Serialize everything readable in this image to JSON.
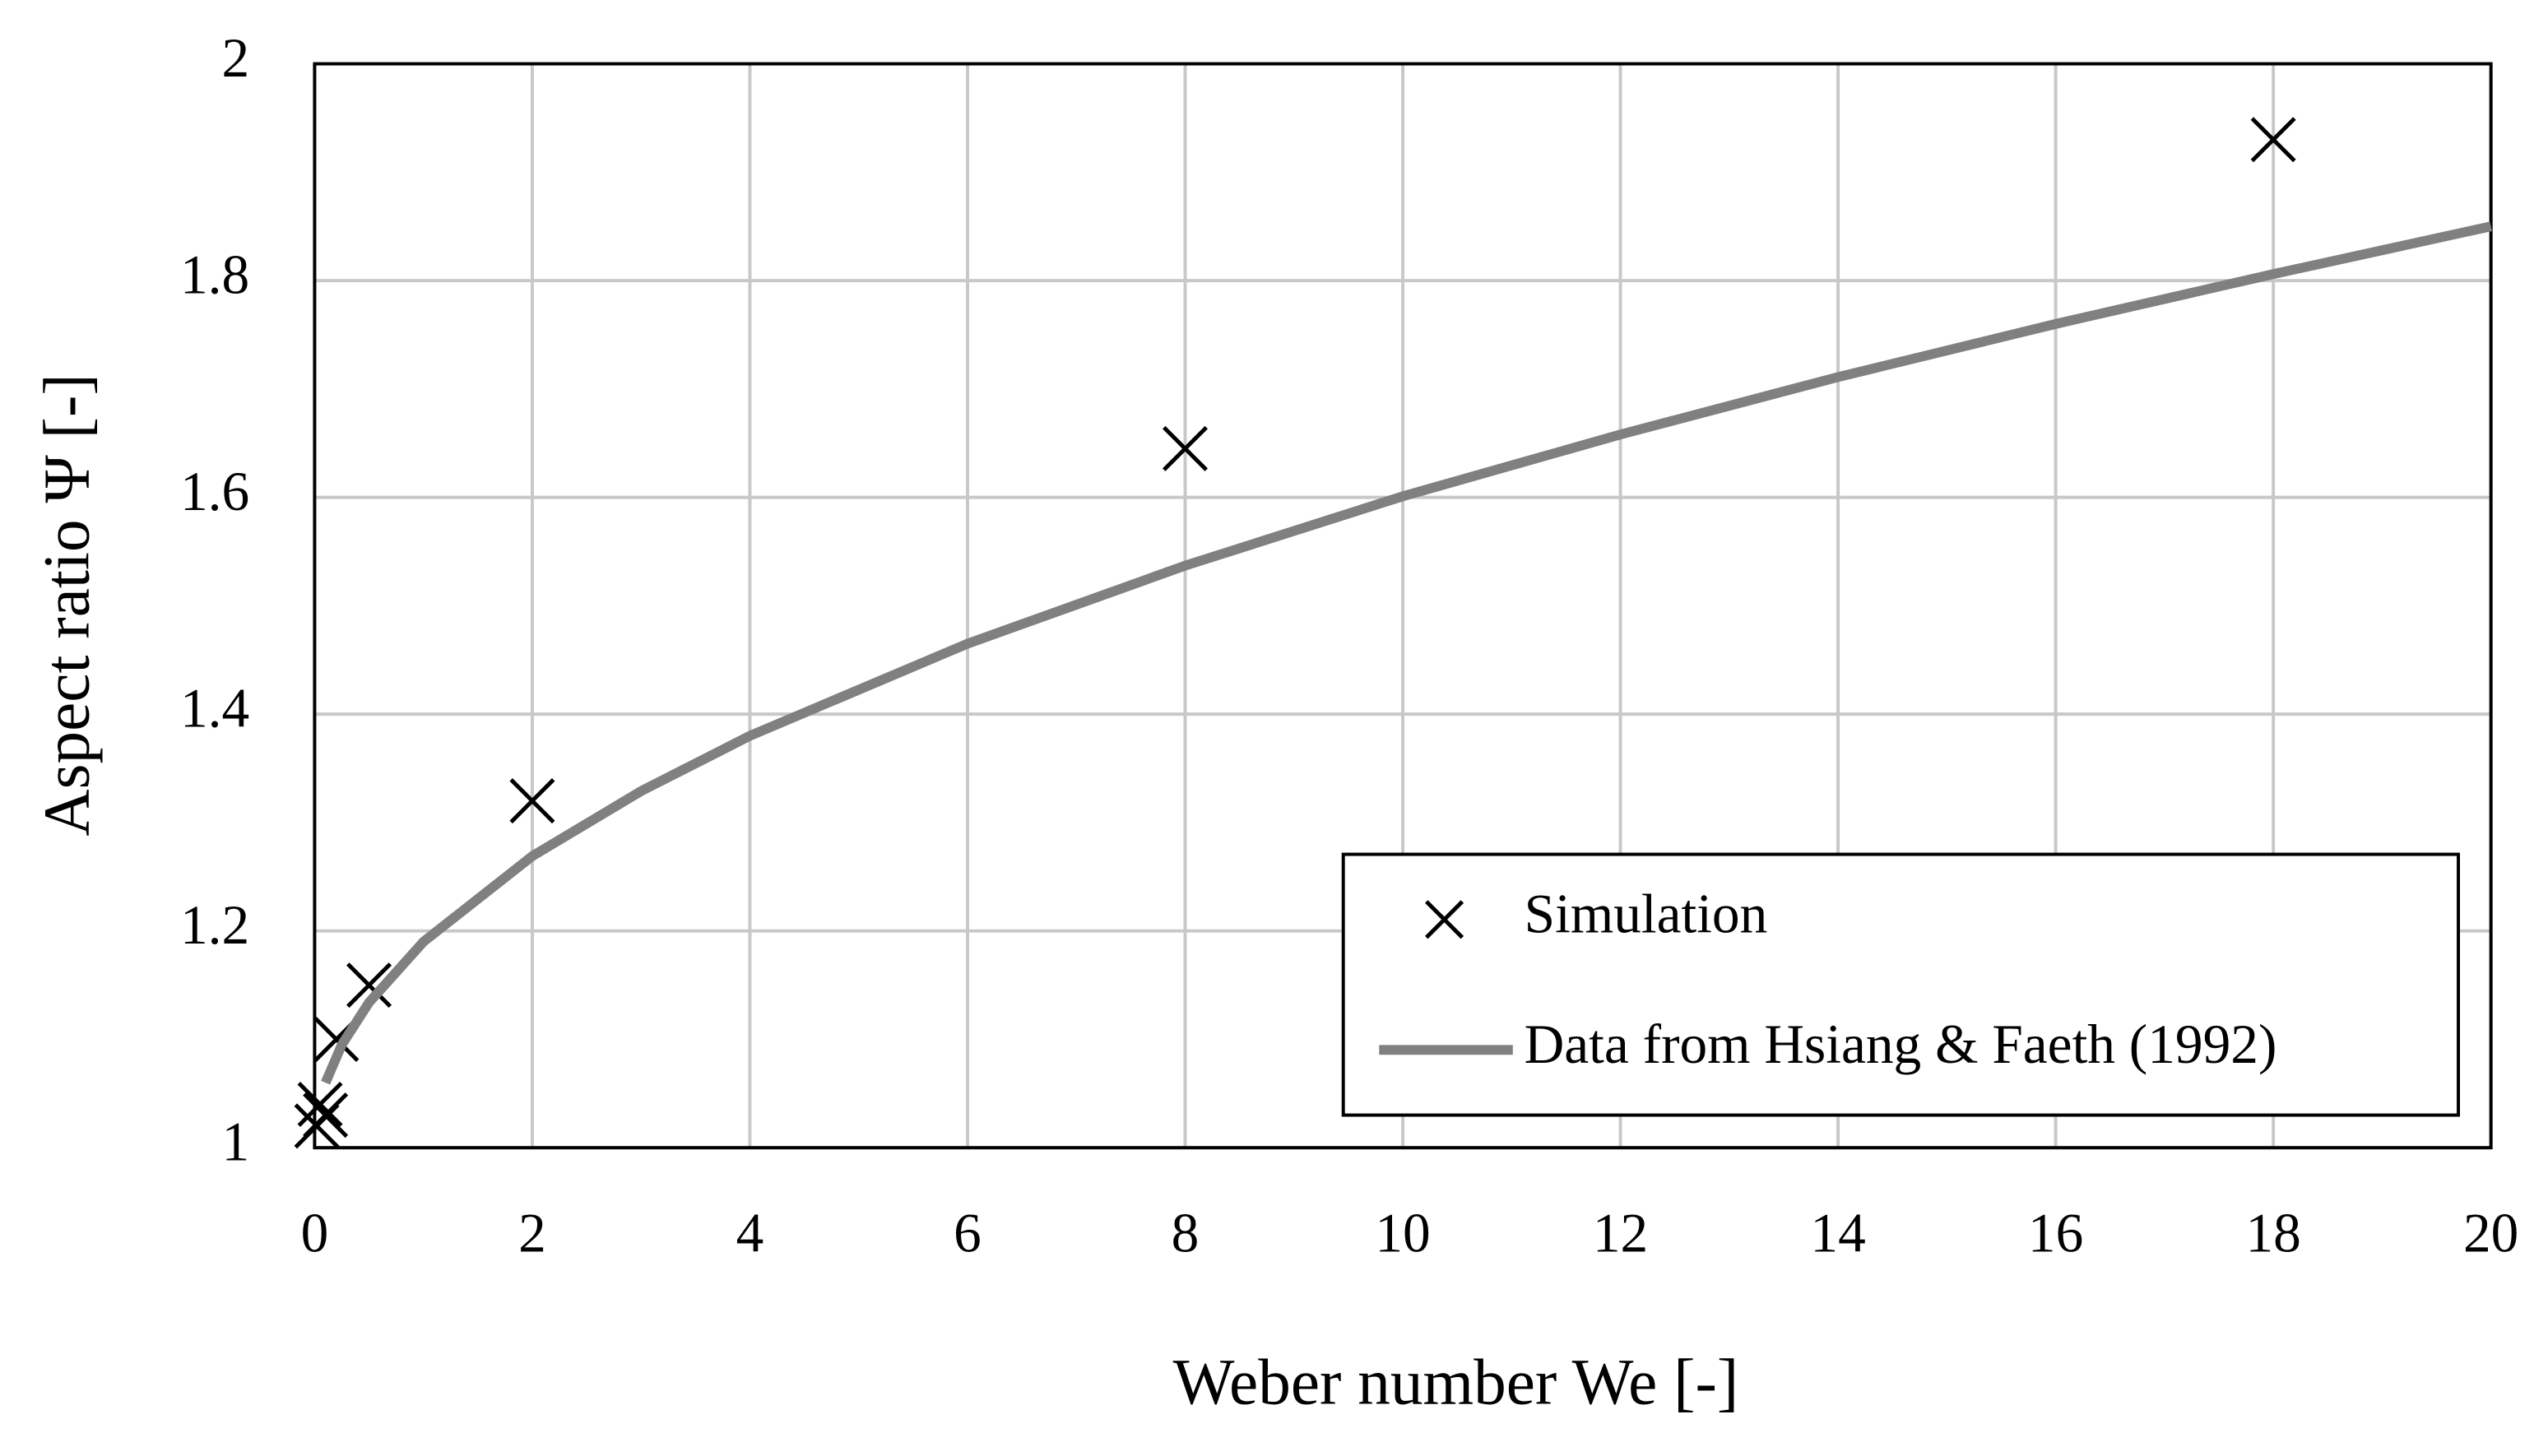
{
  "chart_data": {
    "type": "scatter",
    "x_label": "Weber number We [-]",
    "y_label": "Aspect ratio Ψ [-]",
    "xlim": [
      0,
      20
    ],
    "xticks": [
      0,
      2,
      4,
      6,
      8,
      10,
      12,
      14,
      16,
      18,
      20
    ],
    "ylim": [
      1,
      2
    ],
    "yticks": [
      1,
      1.2,
      1.4,
      1.6,
      1.8,
      2
    ],
    "grid": true,
    "legend": "lower right",
    "series": [
      {
        "name": "Simulation",
        "color": "#000000",
        "marker": "x",
        "x": [
          0.02,
          0.05,
          0.1,
          0.2,
          0.5,
          2,
          8,
          18
        ],
        "values": [
          1.02,
          1.04,
          1.03,
          1.1,
          1.15,
          1.32,
          1.645,
          1.93
        ]
      },
      {
        "name": "Data from Hsiang & Faeth (1992)",
        "color": "#808080",
        "marker": "line",
        "x": [
          0.1,
          0.25,
          0.5,
          1,
          2,
          3,
          4,
          6,
          8,
          10,
          12,
          14,
          16,
          18,
          20
        ],
        "values": [
          1.06,
          1.095,
          1.134,
          1.19,
          1.269,
          1.329,
          1.38,
          1.465,
          1.537,
          1.601,
          1.658,
          1.711,
          1.76,
          1.806,
          1.85
        ]
      }
    ]
  }
}
